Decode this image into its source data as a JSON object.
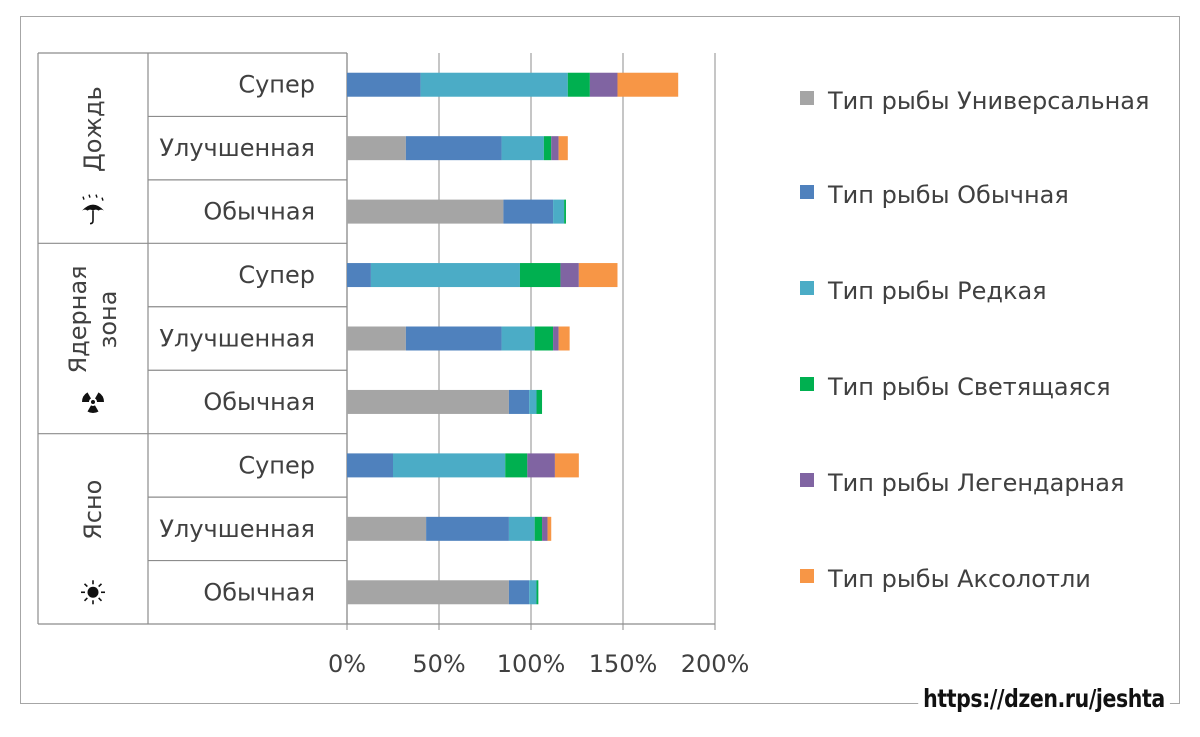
{
  "chart_data": {
    "type": "bar",
    "orientation": "horizontal",
    "stacked": true,
    "groups": [
      {
        "name": "Дождь",
        "icon": "umbrella-rain-icon",
        "categories": [
          "Супер",
          "Улучшенная",
          "Обычная"
        ]
      },
      {
        "name": "Ядерная зона",
        "icon": "radiation-icon",
        "categories": [
          "Супер",
          "Улучшенная",
          "Обычная"
        ]
      },
      {
        "name": "Ясно",
        "icon": "sun-icon",
        "categories": [
          "Супер",
          "Улучшенная",
          "Обычная"
        ]
      }
    ],
    "series": [
      {
        "name": "Тип рыбы Универсальная",
        "color": "#a5a5a5",
        "values": [
          0,
          32,
          85,
          0,
          32,
          88,
          0,
          43,
          88
        ]
      },
      {
        "name": "Тип рыбы Обычная",
        "color": "#4f81bd",
        "values": [
          40,
          52,
          27,
          13,
          52,
          11,
          25,
          45,
          11
        ]
      },
      {
        "name": "Тип рыбы Редкая",
        "color": "#4bacc6",
        "values": [
          80,
          23,
          6,
          81,
          18,
          4,
          61,
          14,
          4
        ]
      },
      {
        "name": "Тип рыбы Светящаяся",
        "color": "#00b050",
        "values": [
          12,
          4,
          1,
          22,
          10,
          3,
          12,
          4,
          1
        ]
      },
      {
        "name": "Тип рыбы Легендарная",
        "color": "#8064a2",
        "values": [
          15,
          4,
          0,
          10,
          3,
          0,
          15,
          3,
          0
        ]
      },
      {
        "name": "Тип рыбы Аксолотли",
        "color": "#f79646",
        "values": [
          33,
          5,
          0,
          21,
          6,
          0,
          13,
          2,
          0
        ]
      }
    ],
    "x_ticks": [
      "0%",
      "50%",
      "100%",
      "150%",
      "200%"
    ],
    "xlim": [
      0,
      200
    ],
    "grid": "vertical",
    "legend": "right"
  },
  "watermark": "https://dzen.ru/jeshta"
}
